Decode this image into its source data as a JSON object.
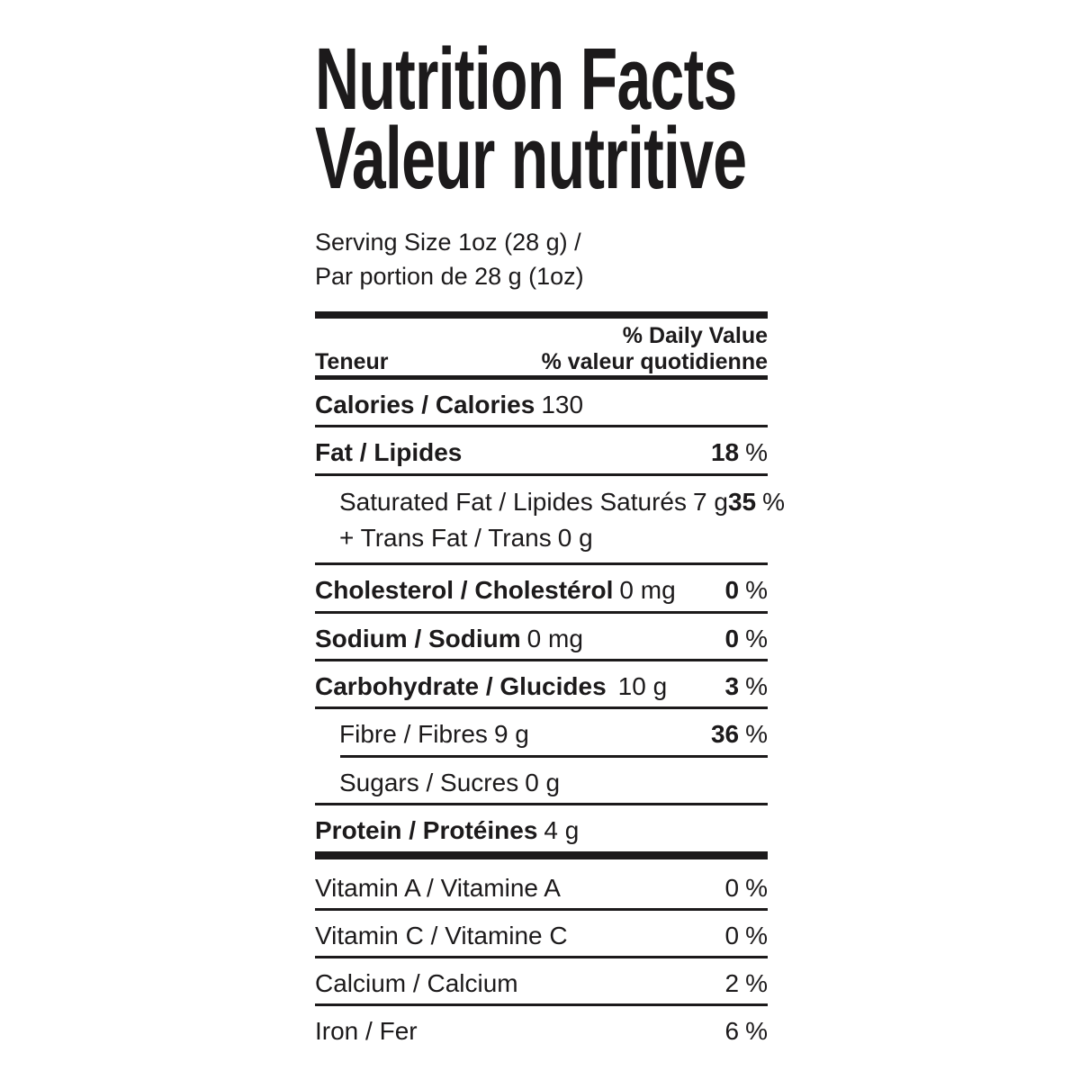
{
  "colors": {
    "ink": "#1c1a1b",
    "background": "#ffffff"
  },
  "title": {
    "line1": "Nutrition Facts",
    "line2": "Valeur nutritive"
  },
  "serving": {
    "line1": "Serving Size 1oz (28 g) /",
    "line2": "Par portion de 28 g (1oz)"
  },
  "header": {
    "left": "Teneur",
    "right_line1": "% Daily Value",
    "right_line2": "% valeur quotidienne"
  },
  "rows": [
    {
      "label": "Calories / Calories",
      "amount": "130"
    },
    {
      "label": "Fat / Lipides",
      "dv_value": "18",
      "dv_suffix": "%"
    },
    {
      "label": "Saturated Fat / Lipides Saturés",
      "amount": "7 g",
      "dv_value": "35",
      "dv_suffix": "%",
      "line2_label": "+ Trans Fat / Trans",
      "line2_amount": "0 g"
    },
    {
      "label": "Cholesterol / Cholestérol",
      "amount": "0 mg",
      "dv_value": "0",
      "dv_suffix": "%"
    },
    {
      "label": "Sodium / Sodium",
      "amount": "0 mg",
      "dv_value": "0",
      "dv_suffix": "%"
    },
    {
      "label": "Carbohydrate / Glucides",
      "amount": "10 g",
      "dv_value": "3",
      "dv_suffix": "%"
    },
    {
      "label": "Fibre / Fibres",
      "amount": "9 g",
      "dv_value": "36",
      "dv_suffix": "%"
    },
    {
      "label": "Sugars / Sucres",
      "amount": "0 g"
    },
    {
      "label": "Protein / Protéines",
      "amount": "4 g"
    },
    {
      "label": "Vitamin A / Vitamine A",
      "dv_value": "0",
      "dv_suffix": "%"
    },
    {
      "label": "Vitamin C / Vitamine C",
      "dv_value": "0",
      "dv_suffix": "%"
    },
    {
      "label": "Calcium / Calcium",
      "dv_value": "2",
      "dv_suffix": "%"
    },
    {
      "label": "Iron / Fer",
      "dv_value": "6",
      "dv_suffix": "%"
    }
  ]
}
